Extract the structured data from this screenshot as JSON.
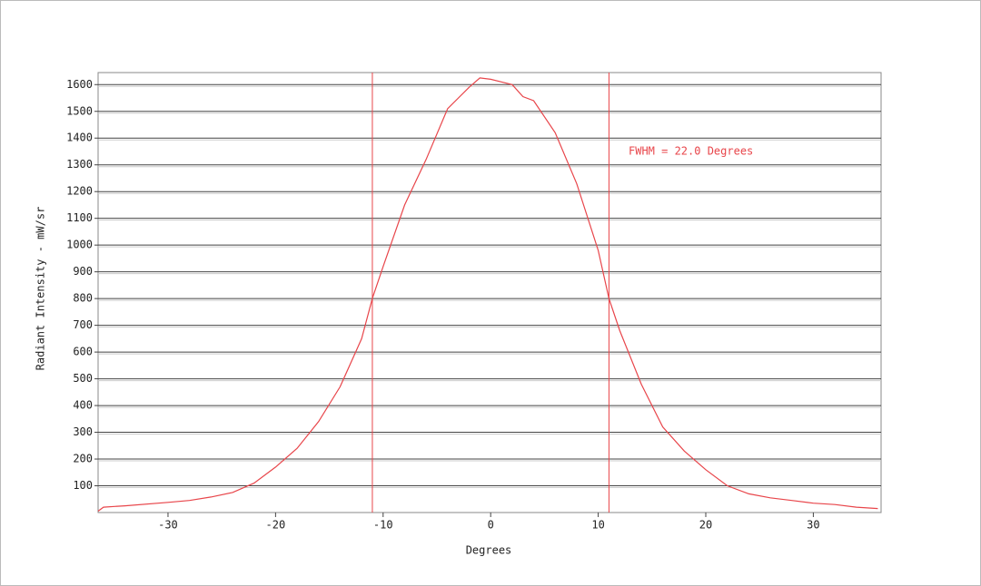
{
  "chart_data": {
    "type": "line",
    "x_label": "Degrees",
    "y_label": "Radiant Intensity - mW/sr",
    "x": [
      -36.5,
      -36,
      -34,
      -30,
      -28,
      -26,
      -24,
      -22,
      -20,
      -18,
      -16,
      -14,
      -12,
      -11,
      -10,
      -8,
      -6,
      -4,
      -2,
      -1,
      0,
      1,
      2,
      3,
      4,
      6,
      8,
      10,
      11,
      12,
      14,
      16,
      18,
      20,
      22,
      24,
      26,
      28,
      30,
      32,
      34,
      36
    ],
    "values": [
      5,
      20,
      25,
      38,
      45,
      58,
      75,
      110,
      170,
      240,
      340,
      470,
      650,
      800,
      920,
      1150,
      1320,
      1510,
      1590,
      1625,
      1620,
      1610,
      1600,
      1555,
      1540,
      1420,
      1230,
      980,
      800,
      680,
      480,
      320,
      230,
      160,
      100,
      70,
      55,
      45,
      35,
      30,
      20,
      15
    ],
    "color": "#e8454a",
    "vlines": [
      -11,
      11
    ],
    "annotation": "FWHM = 22.0 Degrees",
    "xlim": [
      -36.5,
      36.3
    ],
    "ylim": [
      0,
      1645
    ],
    "xticks": [
      -30,
      -20,
      -10,
      0,
      10,
      20,
      30
    ],
    "yticks": [
      100,
      200,
      300,
      400,
      500,
      600,
      700,
      800,
      900,
      1000,
      1100,
      1200,
      1300,
      1400,
      1500,
      1600
    ],
    "grid": true
  }
}
